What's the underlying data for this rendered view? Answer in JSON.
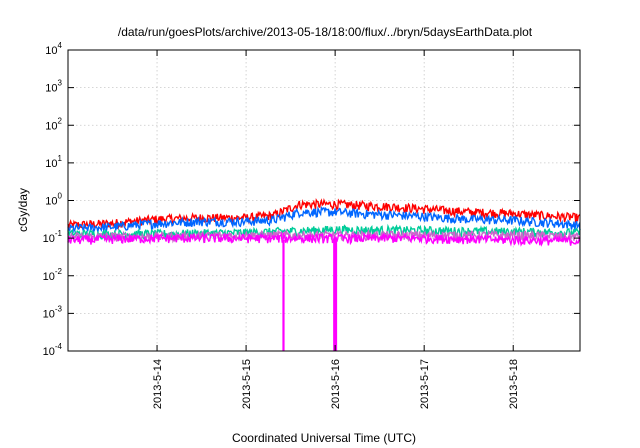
{
  "chart_data": {
    "type": "line",
    "title": "/data/run/goesPlots/archive/2013-05-18/18:00/flux/../bryn/5daysEarthData.plot",
    "xlabel": "Coordinated Universal Time (UTC)",
    "ylabel": "cGy/day",
    "yscale": "log",
    "ylim": [
      0.0001,
      10000
    ],
    "xlim": [
      0,
      5.75
    ],
    "grid": true,
    "x_ticks": [
      {
        "x": 1,
        "label": "2013-5-14"
      },
      {
        "x": 2,
        "label": "2013-5-15"
      },
      {
        "x": 3,
        "label": "2013-5-16"
      },
      {
        "x": 4,
        "label": "2013-5-17"
      },
      {
        "x": 5,
        "label": "2013-5-18"
      }
    ],
    "y_ticks": [
      {
        "value": 10000,
        "base": "10",
        "exp": "4"
      },
      {
        "value": 1000,
        "base": "10",
        "exp": "3"
      },
      {
        "value": 100,
        "base": "10",
        "exp": "2"
      },
      {
        "value": 10,
        "base": "10",
        "exp": "1"
      },
      {
        "value": 1,
        "base": "10",
        "exp": "0"
      },
      {
        "value": 0.1,
        "base": "10",
        "exp": "-1"
      },
      {
        "value": 0.01,
        "base": "10",
        "exp": "-2"
      },
      {
        "value": 0.001,
        "base": "10",
        "exp": "-3"
      },
      {
        "value": 0.0001,
        "base": "10",
        "exp": "-4"
      }
    ],
    "series": [
      {
        "color": "#ff0000",
        "x": [
          0,
          0.5,
          1,
          1.5,
          2,
          2.3,
          2.6,
          3,
          3.3,
          3.6,
          4,
          4.5,
          5,
          5.5,
          5.75
        ],
        "y": [
          0.22,
          0.25,
          0.32,
          0.35,
          0.35,
          0.4,
          0.8,
          0.8,
          0.75,
          0.7,
          0.6,
          0.5,
          0.45,
          0.38,
          0.35
        ]
      },
      {
        "color": "#0066ff",
        "x": [
          0,
          0.5,
          1,
          1.5,
          2,
          2.3,
          2.6,
          3,
          3.3,
          3.6,
          4,
          4.5,
          5,
          5.5,
          5.75
        ],
        "y": [
          0.18,
          0.2,
          0.25,
          0.28,
          0.28,
          0.3,
          0.5,
          0.5,
          0.45,
          0.42,
          0.38,
          0.32,
          0.3,
          0.25,
          0.22
        ]
      },
      {
        "color": "#00cc99",
        "x": [
          0,
          1,
          2,
          3,
          4,
          5,
          5.75
        ],
        "y": [
          0.13,
          0.13,
          0.14,
          0.17,
          0.16,
          0.15,
          0.14
        ]
      },
      {
        "color": "#cc66cc",
        "x": [
          0,
          1,
          2,
          3,
          4,
          5,
          5.75
        ],
        "y": [
          0.11,
          0.11,
          0.12,
          0.12,
          0.12,
          0.12,
          0.11
        ]
      },
      {
        "color": "#ff00ff",
        "x": [
          0,
          1,
          2,
          3,
          4,
          5,
          5.75
        ],
        "y": [
          0.09,
          0.1,
          0.1,
          0.1,
          0.1,
          0.09,
          0.085
        ]
      }
    ],
    "dips": [
      {
        "color": "#ff00ff",
        "x": 2.42,
        "y": 0.0001
      },
      {
        "color": "#ff00ff",
        "x": 2.99,
        "y": 0.0001
      },
      {
        "color": "#ff00ff",
        "x": 3.0,
        "y": 0.0001
      },
      {
        "color": "#ff00ff",
        "x": 3.01,
        "y": 0.0001
      }
    ]
  }
}
